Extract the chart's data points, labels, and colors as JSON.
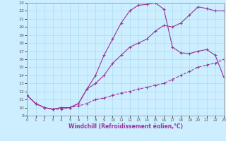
{
  "xlabel": "Windchill (Refroidissement éolien,°C)",
  "bg_color": "#cceeff",
  "line_color": "#993399",
  "xlim": [
    0,
    23
  ],
  "ylim": [
    9,
    23
  ],
  "xticks": [
    0,
    1,
    2,
    3,
    4,
    5,
    6,
    7,
    8,
    9,
    10,
    11,
    12,
    13,
    14,
    15,
    16,
    17,
    18,
    19,
    20,
    21,
    22,
    23
  ],
  "yticks": [
    9,
    10,
    11,
    12,
    13,
    14,
    15,
    16,
    17,
    18,
    19,
    20,
    21,
    22,
    23
  ],
  "line1_x": [
    0,
    1,
    2,
    3,
    4,
    5,
    6,
    7,
    8,
    9,
    10,
    11,
    12,
    13,
    14,
    15,
    16,
    17,
    18,
    19,
    20,
    21,
    22,
    23
  ],
  "line1_y": [
    11.5,
    10.5,
    10.0,
    9.8,
    10.0,
    10.0,
    10.5,
    12.3,
    14.0,
    16.5,
    18.5,
    20.5,
    22.0,
    22.7,
    22.8,
    23.0,
    22.2,
    17.5,
    16.8,
    16.7,
    17.0,
    17.2,
    16.5,
    13.8
  ],
  "line2_x": [
    0,
    1,
    2,
    3,
    4,
    5,
    6,
    7,
    8,
    9,
    10,
    11,
    12,
    13,
    14,
    15,
    16,
    17,
    18,
    19,
    20,
    21,
    22,
    23
  ],
  "line2_y": [
    11.5,
    10.5,
    10.0,
    9.8,
    10.0,
    10.0,
    10.5,
    12.3,
    13.0,
    14.0,
    15.5,
    16.5,
    17.5,
    18.0,
    18.5,
    19.5,
    20.2,
    20.0,
    20.5,
    21.5,
    22.5,
    22.3,
    22.0,
    22.0
  ],
  "line3_x": [
    0,
    1,
    2,
    3,
    4,
    5,
    6,
    7,
    8,
    9,
    10,
    11,
    12,
    13,
    14,
    15,
    16,
    17,
    18,
    19,
    20,
    21,
    22,
    23
  ],
  "line3_y": [
    11.5,
    10.5,
    10.0,
    9.8,
    9.8,
    10.0,
    10.2,
    10.5,
    11.0,
    11.2,
    11.5,
    11.8,
    12.0,
    12.3,
    12.5,
    12.8,
    13.0,
    13.5,
    14.0,
    14.5,
    15.0,
    15.3,
    15.5,
    16.0
  ],
  "grid_color": "#aaddee",
  "marker": "+"
}
